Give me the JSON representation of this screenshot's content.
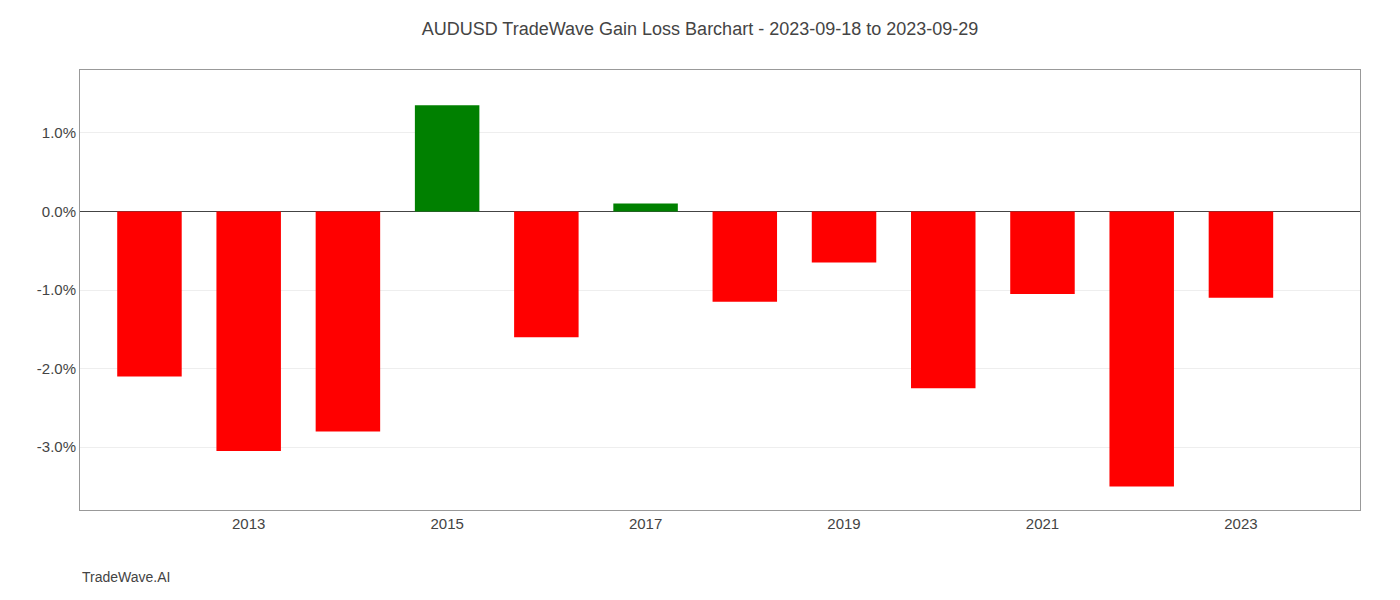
{
  "chart_data": {
    "type": "bar",
    "title": "AUDUSD TradeWave Gain Loss Barchart - 2023-09-18 to 2023-09-29",
    "annotations": [
      "TradeWave.AI"
    ],
    "x": [
      2012,
      2013,
      2014,
      2015,
      2016,
      2017,
      2018,
      2019,
      2020,
      2021,
      2022,
      2023
    ],
    "values": [
      -0.021,
      -0.0305,
      -0.028,
      0.0135,
      -0.016,
      0.001,
      -0.0115,
      -0.0065,
      -0.0225,
      -0.0105,
      -0.035,
      -0.011
    ],
    "colors": [
      "#ff0000",
      "#ff0000",
      "#ff0000",
      "#008000",
      "#ff0000",
      "#008000",
      "#ff0000",
      "#ff0000",
      "#ff0000",
      "#ff0000",
      "#ff0000",
      "#ff0000"
    ],
    "xlim": [
      2011.3,
      2024.2
    ],
    "xticks": [
      2013,
      2015,
      2017,
      2019,
      2021,
      2023
    ],
    "ylim": [
      -0.038,
      0.018
    ],
    "yticks": [
      {
        "value": -0.03,
        "label": "-3.0%"
      },
      {
        "value": -0.02,
        "label": "-2.0%"
      },
      {
        "value": -0.01,
        "label": "-1.0%"
      },
      {
        "value": 0.0,
        "label": "0.0%"
      },
      {
        "value": 0.01,
        "label": "1.0%"
      }
    ],
    "grid": true
  }
}
